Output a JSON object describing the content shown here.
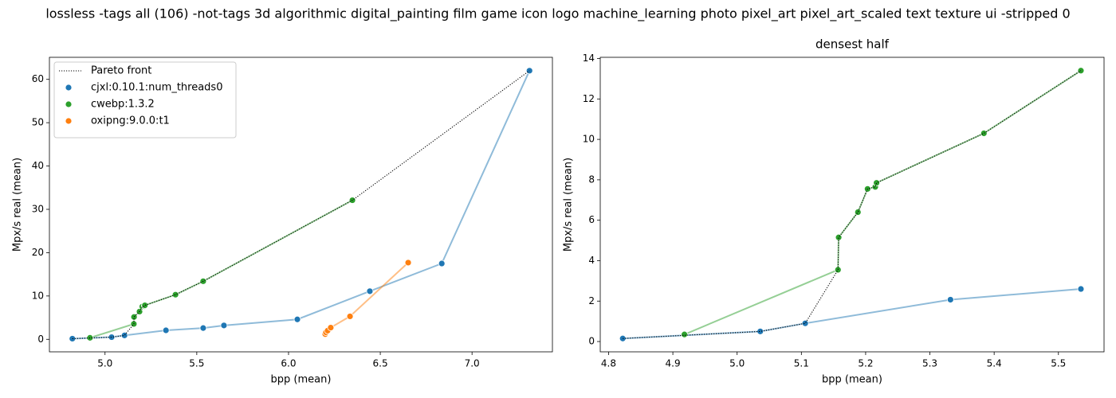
{
  "title": "lossless -tags all (106) -not-tags 3d algorithmic digital_painting film game icon logo machine_learning photo pixel_art pixel_art_scaled text texture ui -stripped 0",
  "chart_data": [
    {
      "type": "line",
      "xlabel": "bpp (mean)",
      "ylabel": "Mpx/s real (mean)",
      "xlim": [
        4.697,
        7.438
      ],
      "ylim": [
        -2.89,
        65.09
      ],
      "xticks": [
        {
          "value": 5,
          "label": "5.0"
        },
        5.5,
        {
          "value": 6,
          "label": "6.0"
        },
        6.5,
        {
          "value": 7,
          "label": "7.0"
        }
      ],
      "yticks": [
        0,
        10,
        20,
        30,
        40,
        50,
        60
      ],
      "legend": "upper left",
      "series": [
        {
          "name": "Pareto front",
          "color": "#000000",
          "linestyle": "dotted",
          "marker": false,
          "x": [
            4.822,
            5.036,
            5.106,
            5.157,
            5.158,
            5.188,
            5.203,
            5.215,
            5.217,
            5.384,
            5.535,
            6.348,
            7.313
          ],
          "values": [
            0.15,
            0.5,
            0.9,
            3.55,
            5.15,
            6.4,
            7.55,
            7.65,
            7.85,
            10.3,
            13.4,
            32.1,
            62.0
          ]
        },
        {
          "name": "cjxl:0.10.1:num_threads0",
          "color": "#1f77b4",
          "linestyle": "solid",
          "marker": true,
          "x": [
            4.822,
            5.036,
            5.106,
            5.332,
            5.535,
            5.648,
            6.048,
            6.443,
            6.835,
            7.313
          ],
          "values": [
            0.15,
            0.5,
            0.9,
            2.07,
            2.6,
            3.2,
            4.6,
            11.1,
            17.5,
            62.0
          ]
        },
        {
          "name": "cwebp:1.3.2",
          "color": "#2ca02c",
          "linestyle": "solid",
          "marker": true,
          "x": [
            4.918,
            5.157,
            5.158,
            5.188,
            5.203,
            5.215,
            5.217,
            5.384,
            5.535,
            6.348
          ],
          "values": [
            0.35,
            3.55,
            5.15,
            6.4,
            7.55,
            7.65,
            7.85,
            10.3,
            13.4,
            32.1
          ]
        },
        {
          "name": "oxipng:9.0.0:t1",
          "color": "#ff7f0e",
          "linestyle": "solid",
          "marker": true,
          "x": [
            6.2,
            6.204,
            6.213,
            6.23,
            6.335,
            6.652
          ],
          "values": [
            1.2,
            1.6,
            2.0,
            2.7,
            5.3,
            17.7
          ]
        }
      ]
    },
    {
      "type": "line",
      "title": "densest half",
      "xlabel": "bpp (mean)",
      "ylabel": "Mpx/s real (mean)",
      "xlim": [
        4.787,
        5.571
      ],
      "ylim": [
        -0.51,
        14.06
      ],
      "xticks": [
        4.8,
        4.9,
        {
          "value": 5,
          "label": "5.0"
        },
        5.1,
        5.2,
        5.3,
        5.4,
        5.5
      ],
      "yticks": [
        0,
        2,
        4,
        6,
        8,
        10,
        12,
        14
      ],
      "series": [
        {
          "color": "#000000",
          "linestyle": "dotted",
          "marker": false,
          "x": [
            4.822,
            5.036,
            5.106,
            5.157,
            5.158,
            5.188,
            5.203,
            5.215,
            5.217,
            5.384,
            5.535
          ],
          "values": [
            0.15,
            0.5,
            0.9,
            3.55,
            5.15,
            6.4,
            7.55,
            7.65,
            7.85,
            10.3,
            13.4
          ]
        },
        {
          "color": "#1f77b4",
          "linestyle": "solid",
          "marker": true,
          "x": [
            4.822,
            5.036,
            5.106,
            5.332,
            5.535
          ],
          "values": [
            0.15,
            0.5,
            0.9,
            2.07,
            2.6
          ]
        },
        {
          "color": "#2ca02c",
          "linestyle": "solid",
          "marker": true,
          "x": [
            4.918,
            5.157,
            5.158,
            5.188,
            5.203,
            5.215,
            5.217,
            5.384,
            5.535
          ],
          "values": [
            0.35,
            3.55,
            5.15,
            6.4,
            7.55,
            7.65,
            7.85,
            10.3,
            13.4
          ]
        }
      ]
    }
  ]
}
